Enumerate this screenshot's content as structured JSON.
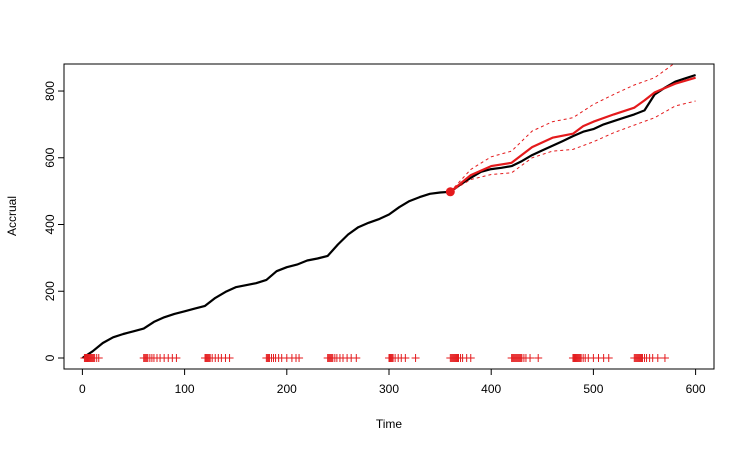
{
  "chart_data": {
    "type": "line",
    "title": "",
    "xlabel": "Time",
    "ylabel": "Accrual",
    "xlim": [
      -18,
      618
    ],
    "ylim": [
      -33,
      881
    ],
    "xticks": [
      0,
      100,
      200,
      300,
      400,
      500,
      600
    ],
    "yticks": [
      0,
      200,
      400,
      600,
      800
    ],
    "grid": false,
    "legend": "none",
    "colors": {
      "observed": "#000000",
      "prediction": "#e41a1c",
      "band": "#e41a1c",
      "marker": "#e41a1c",
      "ticks_plus": "#e41a1c"
    },
    "series": [
      {
        "role": "observed",
        "x": [
          0,
          10,
          20,
          30,
          40,
          50,
          60,
          70,
          80,
          90,
          100,
          110,
          120,
          130,
          140,
          150,
          160,
          170,
          180,
          190,
          200,
          210,
          220,
          230,
          240,
          250,
          260,
          270,
          280,
          290,
          300,
          310,
          320,
          330,
          340,
          350,
          360,
          370,
          380,
          390,
          400,
          410,
          420,
          430,
          440,
          450,
          460,
          470,
          480,
          490,
          500,
          510,
          520,
          530,
          540,
          550,
          560,
          570,
          580,
          590,
          600
        ],
        "y": [
          0,
          20,
          45,
          62,
          72,
          80,
          88,
          108,
          122,
          132,
          140,
          148,
          156,
          180,
          198,
          212,
          218,
          224,
          234,
          260,
          272,
          280,
          292,
          298,
          306,
          340,
          370,
          392,
          405,
          416,
          430,
          452,
          470,
          482,
          492,
          496,
          498,
          520,
          540,
          558,
          566,
          570,
          575,
          590,
          608,
          622,
          636,
          650,
          665,
          678,
          686,
          700,
          710,
          720,
          730,
          742,
          790,
          810,
          828,
          838,
          848
        ]
      },
      {
        "role": "prediction",
        "x": [
          360,
          380,
          400,
          420,
          440,
          460,
          480,
          490,
          500,
          520,
          540,
          550,
          560,
          580,
          600
        ],
        "y": [
          498,
          548,
          575,
          585,
          632,
          660,
          672,
          695,
          708,
          730,
          750,
          772,
          796,
          822,
          840
        ]
      },
      {
        "role": "upper_band",
        "x": [
          360,
          380,
          400,
          420,
          440,
          460,
          480,
          500,
          520,
          540,
          560,
          570,
          580
        ],
        "y": [
          498,
          565,
          603,
          620,
          680,
          708,
          720,
          760,
          790,
          818,
          840,
          862,
          885
        ]
      },
      {
        "role": "lower_band",
        "x": [
          360,
          380,
          400,
          420,
          440,
          460,
          480,
          500,
          520,
          540,
          560,
          580,
          600
        ],
        "y": [
          498,
          535,
          550,
          555,
          600,
          620,
          625,
          648,
          675,
          698,
          720,
          755,
          770
        ]
      }
    ],
    "highlight_point": {
      "x": 360,
      "y": 498
    },
    "event_marks": {
      "y": 0,
      "x": [
        2,
        3,
        4,
        5,
        6,
        7,
        8,
        9,
        10,
        11,
        12,
        14,
        16,
        60,
        61,
        62,
        63,
        64,
        66,
        68,
        70,
        73,
        76,
        80,
        84,
        88,
        92,
        120,
        121,
        122,
        123,
        124,
        125,
        127,
        130,
        133,
        136,
        140,
        144,
        180,
        181,
        182,
        183,
        185,
        187,
        189,
        192,
        195,
        200,
        205,
        209,
        212,
        240,
        241,
        242,
        243,
        244,
        245,
        247,
        249,
        252,
        255,
        259,
        263,
        268,
        300,
        301,
        302,
        303,
        304,
        306,
        309,
        312,
        316,
        326,
        360,
        361,
        362,
        363,
        364,
        365,
        366,
        367,
        368,
        370,
        372,
        376,
        380,
        420,
        421,
        422,
        423,
        424,
        425,
        426,
        427,
        428,
        429,
        430,
        432,
        434,
        438,
        446,
        480,
        481,
        482,
        483,
        484,
        485,
        486,
        487,
        488,
        490,
        492,
        495,
        500,
        505,
        510,
        515,
        540,
        541,
        542,
        543,
        544,
        545,
        546,
        547,
        548,
        550,
        552,
        555,
        558,
        563,
        570
      ]
    }
  }
}
